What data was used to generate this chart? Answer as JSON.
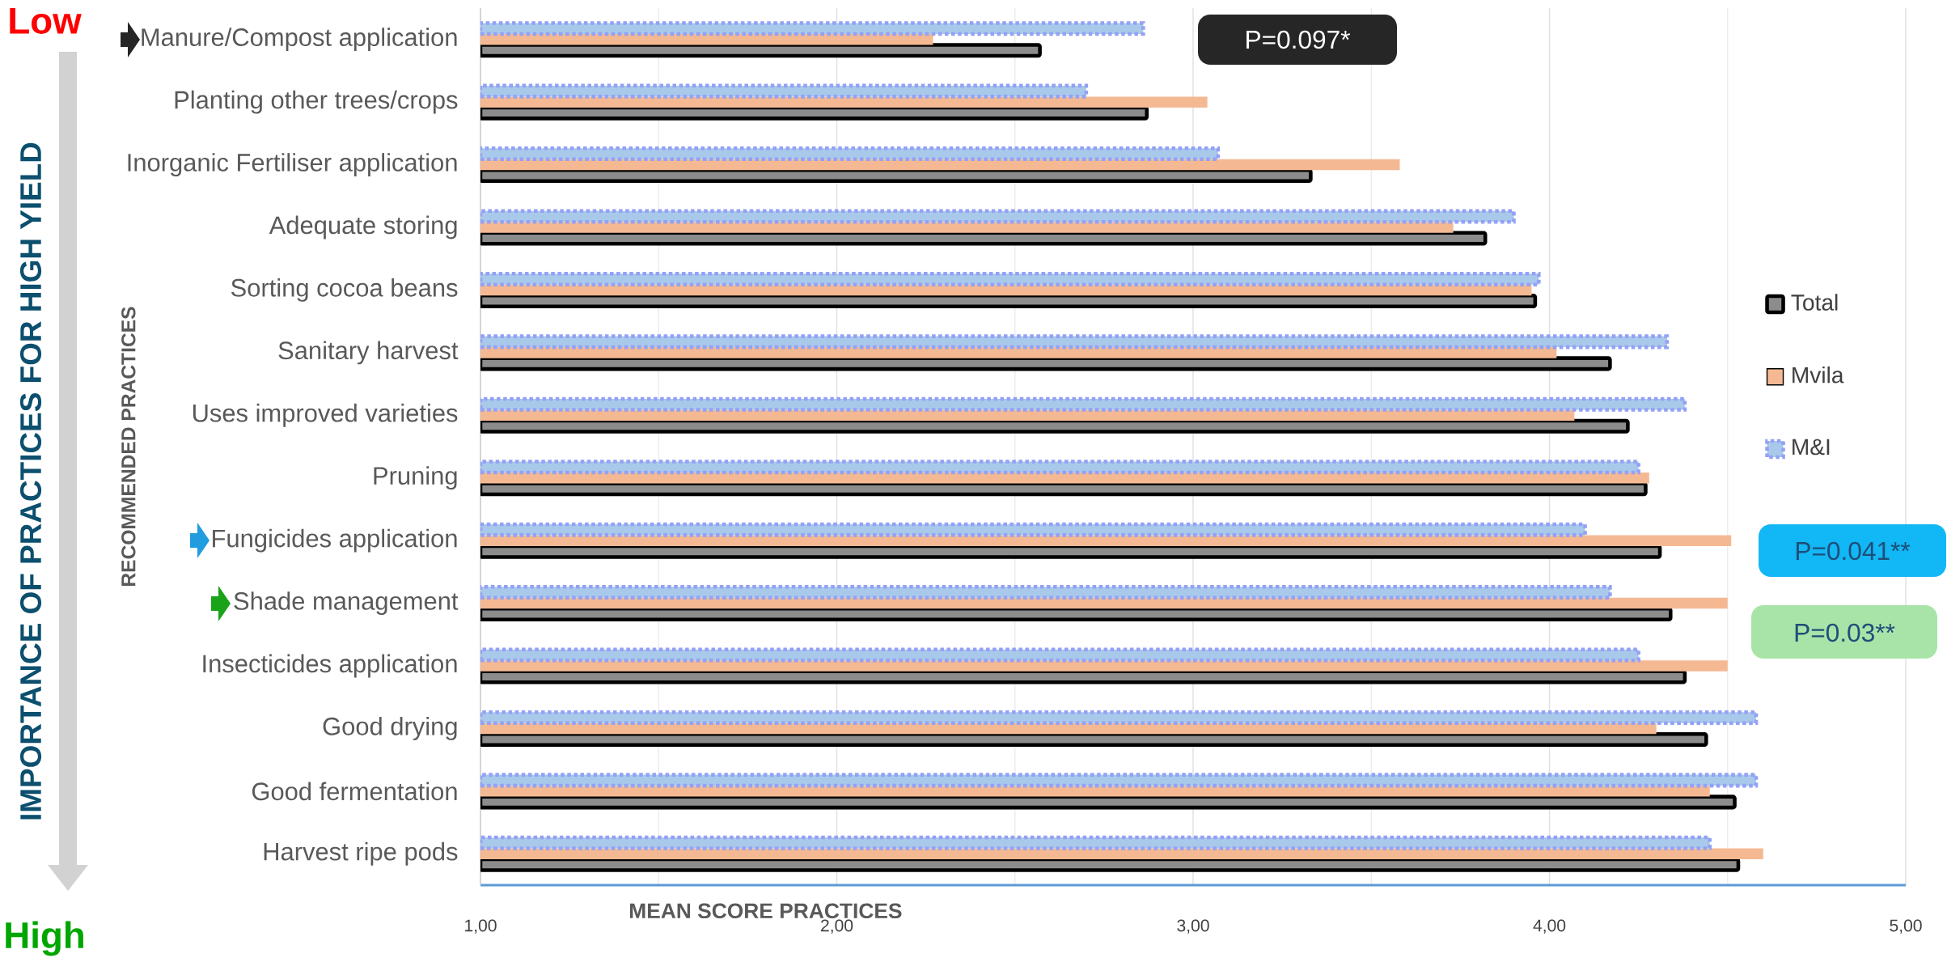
{
  "chart_data": {
    "type": "bar",
    "orientation": "horizontal",
    "xlabel": "MEAN SCORE PRACTICES",
    "ylabel": "RECOMMENDED PRACTICES",
    "categories": [
      "Manure/Compost application",
      "Planting other trees/crops",
      "Inorganic Fertiliser application",
      "Adequate storing",
      "Sorting cocoa beans",
      "Sanitary harvest",
      "Uses improved varieties",
      "Pruning",
      "Fungicides application",
      "Shade management",
      "Insecticides application",
      "Good drying",
      "Good fermentation",
      "Harvest ripe pods"
    ],
    "series": [
      {
        "name": "Total",
        "color": "#000000",
        "values": [
          2.57,
          2.87,
          3.33,
          3.82,
          3.96,
          4.17,
          4.22,
          4.27,
          4.31,
          4.34,
          4.38,
          4.44,
          4.52,
          4.53
        ]
      },
      {
        "name": "Mvila",
        "color": "#f4b993",
        "values": [
          2.27,
          3.04,
          3.58,
          3.73,
          3.95,
          4.02,
          4.07,
          4.28,
          4.51,
          4.5,
          4.5,
          4.3,
          4.45,
          4.6
        ]
      },
      {
        "name": "M&I",
        "color": "#a9c9ea",
        "values": [
          2.86,
          2.7,
          3.07,
          3.9,
          3.97,
          4.33,
          4.38,
          4.25,
          4.1,
          4.17,
          4.25,
          4.58,
          4.58,
          4.45
        ]
      }
    ],
    "xlim": [
      1,
      5
    ],
    "xticks": [
      {
        "value": 1,
        "label": "1,00"
      },
      {
        "value": 2,
        "label": "2,00"
      },
      {
        "value": 3,
        "label": "3,00"
      },
      {
        "value": 4,
        "label": "4,00"
      },
      {
        "value": 5,
        "label": "5,00"
      }
    ],
    "grid": "x",
    "legend": "right",
    "annotations": [
      "Low",
      "High",
      "IMPORTANCE OF PRACTICES FOR HIGH YIELD",
      "P=0.097*",
      "P=0.041**",
      "P=0.03**"
    ]
  }
}
